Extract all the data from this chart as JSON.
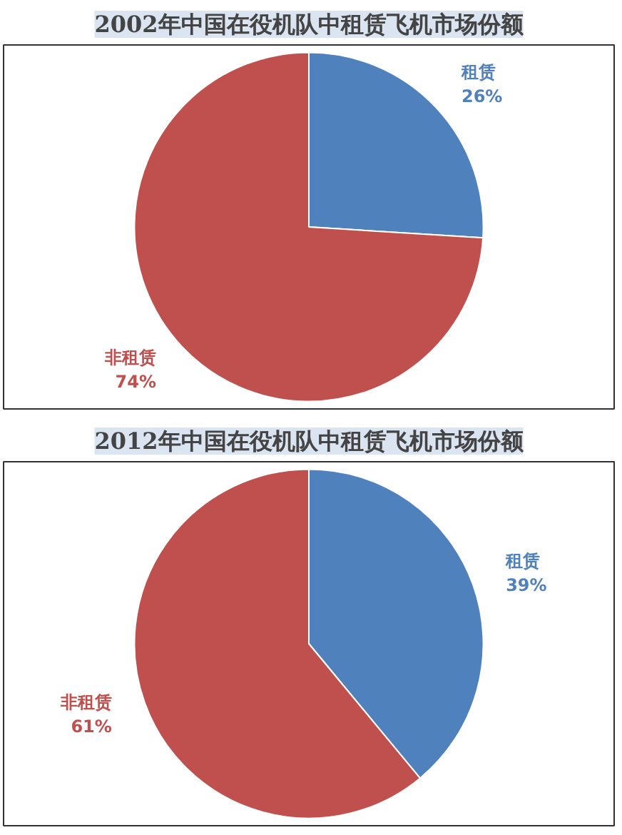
{
  "chart_data": [
    {
      "type": "pie",
      "title": "2002年中国在役机队中租赁飞机市场份额",
      "categories": [
        "租赁",
        "非租赁"
      ],
      "values": [
        26,
        74
      ],
      "colors": [
        "#4f81bd",
        "#c0504d"
      ],
      "value_labels": [
        "26%",
        "74%"
      ]
    },
    {
      "type": "pie",
      "title": "2012年中国在役机队中租赁飞机市场份额",
      "categories": [
        "租赁",
        "非租赁"
      ],
      "values": [
        39,
        61
      ],
      "colors": [
        "#4f81bd",
        "#c0504d"
      ],
      "value_labels": [
        "39%",
        "61%"
      ]
    }
  ]
}
